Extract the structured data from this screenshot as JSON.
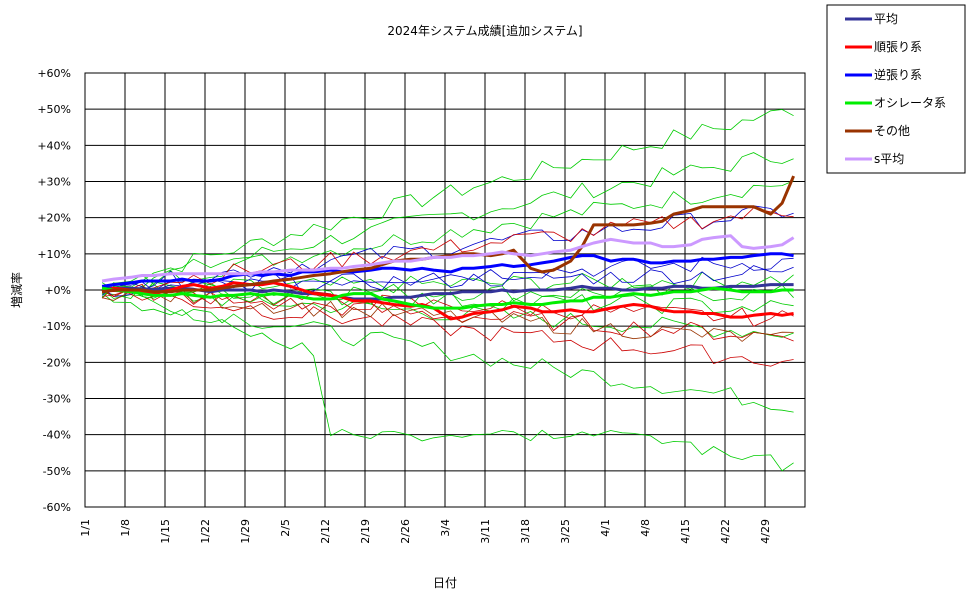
{
  "chart_data": {
    "type": "line",
    "title": "2024年システム成績[追加システム]",
    "xlabel": "日付",
    "ylabel": "増減率",
    "x_ticks": [
      "1/1",
      "1/8",
      "1/15",
      "1/22",
      "1/29",
      "2/5",
      "2/12",
      "2/19",
      "2/26",
      "3/4",
      "3/11",
      "3/18",
      "3/25",
      "4/1",
      "4/8",
      "4/15",
      "4/22",
      "4/29"
    ],
    "y_ticks": [
      "+60%",
      "+50%",
      "+40%",
      "+30%",
      "+20%",
      "+10%",
      "+0%",
      "-10%",
      "-20%",
      "-30%",
      "-40%",
      "-50%",
      "-60%"
    ],
    "ylim": [
      -60,
      60
    ],
    "x_range_days": [
      0,
      126
    ],
    "grid": true,
    "legend_position": "top-right",
    "x_days": [
      3,
      5,
      8,
      10,
      12,
      15,
      17,
      19,
      22,
      24,
      26,
      29,
      31,
      33,
      36,
      38,
      40,
      43,
      45,
      47,
      50,
      52,
      54,
      57,
      59,
      61,
      64,
      66,
      68,
      71,
      73,
      75,
      78,
      80,
      82,
      85,
      87,
      89,
      92,
      94,
      96,
      99,
      101,
      103,
      106,
      108,
      110,
      113,
      115,
      117,
      120,
      122,
      124
    ],
    "series": [
      {
        "name": "平均",
        "color": "#333399",
        "width": 3,
        "values": [
          0,
          0.5,
          0.5,
          0.3,
          0.2,
          0.5,
          0.5,
          0.2,
          -0.5,
          0,
          0,
          0,
          -0.5,
          0,
          -0.5,
          -1,
          -1,
          -1.5,
          -2,
          -2.5,
          -2.5,
          -2.5,
          -2,
          -2,
          -1.5,
          -1,
          -1,
          -0.5,
          -0.5,
          -0.5,
          0,
          -0.5,
          0,
          0,
          0,
          0.5,
          1,
          0.5,
          0.5,
          0,
          0,
          0.5,
          0.5,
          1,
          1,
          0.5,
          0.5,
          1,
          1,
          1,
          1.5,
          1.5,
          1.5
        ]
      },
      {
        "name": "順張り系",
        "color": "#ff0000",
        "width": 3,
        "values": [
          -0.5,
          0.5,
          0,
          -0.5,
          -1,
          0,
          1,
          1.5,
          0.5,
          1,
          2,
          1.5,
          1.5,
          2,
          1,
          0,
          -1,
          -1.5,
          -2,
          -3,
          -3,
          -3.5,
          -4,
          -4.5,
          -4,
          -5,
          -8,
          -7.5,
          -6.5,
          -6,
          -5.5,
          -4.5,
          -5,
          -6,
          -6,
          -5.5,
          -6,
          -6,
          -5,
          -4.5,
          -4,
          -4.5,
          -5.5,
          -6,
          -6,
          -6.5,
          -6.5,
          -7.5,
          -7.5,
          -7,
          -6.5,
          -7,
          -6.5
        ]
      },
      {
        "name": "逆張り系",
        "color": "#0000ff",
        "width": 3,
        "values": [
          1,
          1.5,
          2,
          2.5,
          2.5,
          2.5,
          3,
          2.5,
          2.5,
          3,
          4,
          4.5,
          4,
          4.5,
          4,
          5,
          5,
          5.5,
          5,
          5,
          5.5,
          6,
          6,
          5.5,
          6,
          5.5,
          5,
          6,
          6,
          6.5,
          7,
          6.5,
          7,
          7.5,
          8,
          9,
          9.5,
          9.5,
          8,
          8.5,
          8.5,
          7.5,
          7.5,
          8,
          8,
          8.5,
          8.5,
          9,
          9,
          9.5,
          10,
          10,
          9.5
        ]
      },
      {
        "name": "オシレータ系",
        "color": "#00ee00",
        "width": 3,
        "values": [
          0.5,
          0,
          -0.5,
          -1,
          -1.5,
          -1.5,
          -1,
          -1.5,
          -2,
          -1.5,
          -1.5,
          -1,
          -1.5,
          -1,
          -1.5,
          -2,
          -2.5,
          -2.5,
          -1.5,
          -1,
          -1,
          -2.5,
          -3,
          -4,
          -4.5,
          -5,
          -5,
          -5,
          -4.5,
          -4,
          -4,
          -3.5,
          -4,
          -4,
          -3.5,
          -3,
          -3,
          -2,
          -2,
          -1.5,
          -1,
          -1.5,
          -1,
          -0.5,
          -0.5,
          0,
          0.5,
          0,
          -0.5,
          -0.5,
          -0.5,
          0,
          0
        ]
      },
      {
        "name": "その他",
        "color": "#993300",
        "width": 3,
        "values": [
          -0.5,
          0,
          0,
          0,
          -0.5,
          -0.5,
          0,
          0,
          0,
          0.5,
          1,
          1.5,
          2,
          2.5,
          3,
          3.5,
          4,
          4.5,
          5,
          5.5,
          6,
          7,
          8,
          8.5,
          8.5,
          9,
          9.5,
          10,
          10,
          9.5,
          10,
          11,
          6,
          5,
          5.5,
          8,
          12,
          18,
          18,
          18,
          18,
          18.5,
          19,
          21,
          22,
          23,
          23,
          23,
          23,
          23,
          21,
          24,
          31.5
        ]
      },
      {
        "name": "s平均",
        "color": "#cc99ff",
        "width": 3,
        "values": [
          2.5,
          3,
          3.5,
          4,
          4,
          4.5,
          4.5,
          4.5,
          4.5,
          4.5,
          4.5,
          4.5,
          5,
          5,
          5.5,
          5.5,
          5.5,
          6,
          6,
          6.5,
          7,
          7.5,
          8,
          8,
          8.5,
          9,
          9,
          9.5,
          9.5,
          10,
          10.5,
          10,
          9.5,
          10,
          10.5,
          11,
          12,
          13,
          14,
          13.5,
          13,
          13,
          12,
          12,
          12.5,
          14,
          14.5,
          15,
          12,
          11.5,
          12,
          12.5,
          14.5
        ]
      }
    ],
    "background_series_colors": [
      "#00cc00",
      "#0000cc",
      "#cc0000",
      "#993300"
    ]
  },
  "legend": {
    "items": [
      {
        "label": "平均",
        "color": "#333399"
      },
      {
        "label": "順張り系",
        "color": "#ff0000"
      },
      {
        "label": "逆張り系",
        "color": "#0000ff"
      },
      {
        "label": "オシレータ系",
        "color": "#00ee00"
      },
      {
        "label": "その他",
        "color": "#993300"
      },
      {
        "label": "s平均",
        "color": "#cc99ff"
      }
    ]
  }
}
